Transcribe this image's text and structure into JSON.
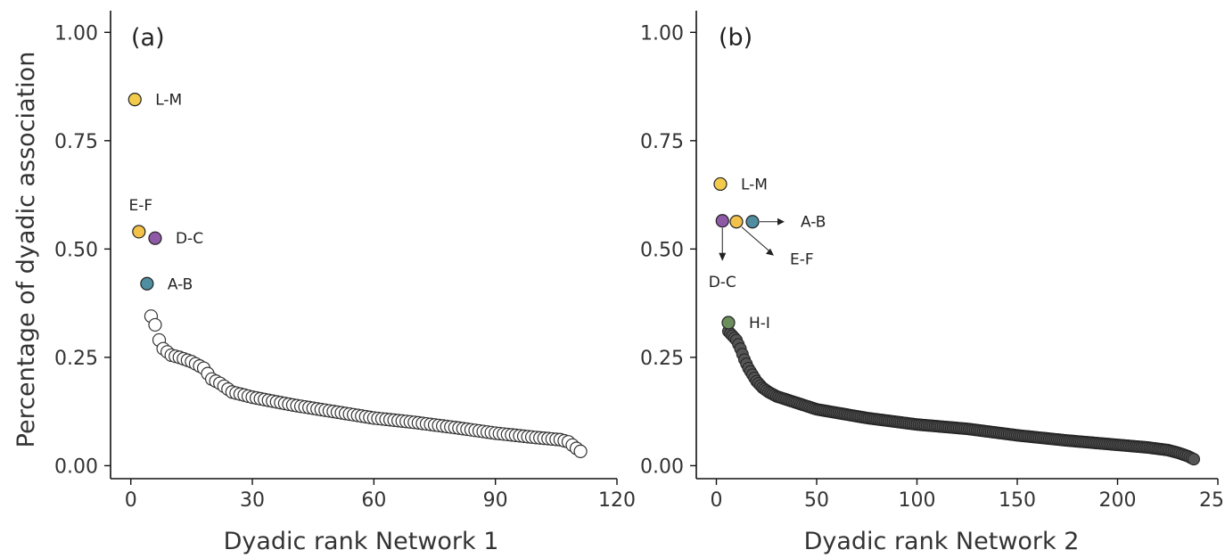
{
  "figure": {
    "ylabel": "Percentage of dyadic association"
  },
  "chart_data": [
    {
      "type": "scatter",
      "panel_label": "(a)",
      "xlabel": "Dyadic rank Network 1",
      "ylabel": "Percentage of dyadic association",
      "xlim": [
        -5,
        120
      ],
      "ylim": [
        -0.03,
        1.05
      ],
      "xticks": [
        0,
        30,
        60,
        90,
        120
      ],
      "yticks": [
        0.0,
        0.25,
        0.5,
        0.75,
        1.0
      ],
      "ytick_labels": [
        "0.00",
        "0.25",
        "0.50",
        "0.75",
        "1.00"
      ],
      "grid": false,
      "highlighted": [
        {
          "label": "L-M",
          "x": 1,
          "y": 0.845,
          "color": "#f2cb4d",
          "label_pos": "right"
        },
        {
          "label": "E-F",
          "x": 2,
          "y": 0.54,
          "color": "#f2c14a",
          "label_pos": "above"
        },
        {
          "label": "D-C",
          "x": 6,
          "y": 0.525,
          "color": "#8e5aa6",
          "label_pos": "right"
        },
        {
          "label": "A-B",
          "x": 4,
          "y": 0.42,
          "color": "#4f8ea0",
          "label_pos": "right"
        }
      ],
      "curve": {
        "x_start": 5,
        "x_end": 111,
        "knots_x": [
          5,
          6,
          7,
          8,
          10,
          12,
          15,
          18,
          20,
          22,
          25,
          30,
          40,
          50,
          60,
          70,
          80,
          90,
          100,
          106,
          108,
          110,
          111
        ],
        "knots_y": [
          0.345,
          0.325,
          0.29,
          0.27,
          0.255,
          0.25,
          0.24,
          0.225,
          0.2,
          0.19,
          0.17,
          0.158,
          0.14,
          0.125,
          0.11,
          0.1,
          0.088,
          0.075,
          0.065,
          0.06,
          0.055,
          0.04,
          0.033
        ]
      },
      "point_style": "hollow"
    },
    {
      "type": "scatter",
      "panel_label": "(b)",
      "xlabel": "Dyadic rank Network 2",
      "ylabel": "",
      "xlim": [
        -10,
        250
      ],
      "ylim": [
        -0.03,
        1.05
      ],
      "xticks": [
        0,
        50,
        100,
        150,
        200,
        250
      ],
      "yticks": [
        0.0,
        0.25,
        0.5,
        0.75,
        1.0
      ],
      "ytick_labels": [
        "0.00",
        "0.25",
        "0.50",
        "0.75",
        "1.00"
      ],
      "grid": false,
      "highlighted": [
        {
          "label": "L-M",
          "x": 2,
          "y": 0.65,
          "color": "#f2cb4d",
          "label_pos": "right"
        },
        {
          "label": "D-C",
          "x": 3,
          "y": 0.565,
          "color": "#8e5aa6",
          "label_pos": "arrow-down"
        },
        {
          "label": "E-F",
          "x": 10,
          "y": 0.563,
          "color": "#f2c14a",
          "label_pos": "arrow-diag"
        },
        {
          "label": "A-B",
          "x": 18,
          "y": 0.563,
          "color": "#4f8ea0",
          "label_pos": "arrow-right"
        },
        {
          "label": "H-I",
          "x": 6,
          "y": 0.33,
          "color": "#6b8e5a",
          "label_pos": "right"
        }
      ],
      "curve": {
        "x_start": 6,
        "x_end": 238,
        "knots_x": [
          6,
          8,
          10,
          12,
          14,
          16,
          18,
          20,
          23,
          26,
          30,
          40,
          50,
          75,
          100,
          125,
          150,
          175,
          200,
          215,
          225,
          230,
          235,
          238
        ],
        "knots_y": [
          0.31,
          0.3,
          0.29,
          0.27,
          0.245,
          0.225,
          0.21,
          0.195,
          0.18,
          0.17,
          0.16,
          0.145,
          0.13,
          0.11,
          0.095,
          0.085,
          0.07,
          0.058,
          0.048,
          0.042,
          0.036,
          0.03,
          0.022,
          0.015
        ]
      },
      "point_style": "filled-dark"
    }
  ]
}
